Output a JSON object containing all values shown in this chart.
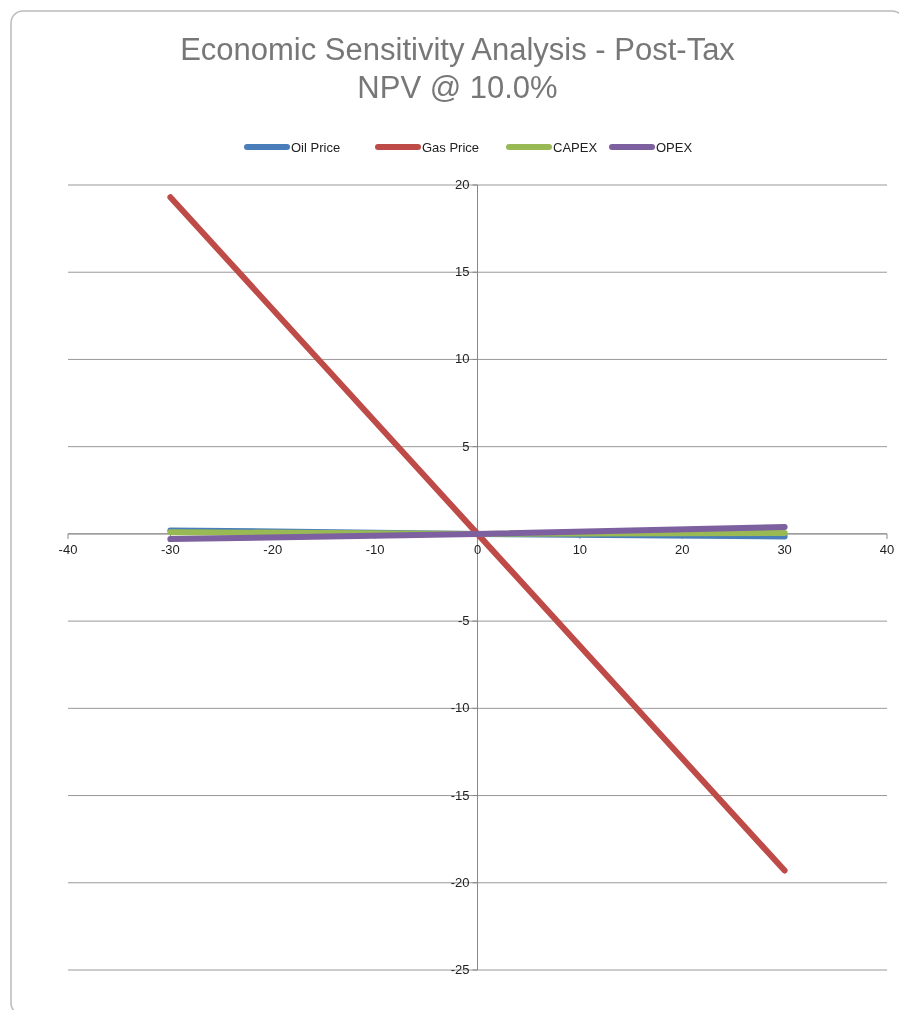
{
  "chart_data": {
    "type": "line",
    "title": "Economic Sensitivity Analysis - Post-Tax NPV @ 10.0%",
    "x": [
      -30,
      0,
      30
    ],
    "series": [
      {
        "name": "Oil Price",
        "color": "#4a7ebb",
        "values": [
          0.2,
          0,
          -0.15
        ]
      },
      {
        "name": "Gas Price",
        "color": "#be4b48",
        "values": [
          19.3,
          0,
          -19.3
        ]
      },
      {
        "name": "CAPEX",
        "color": "#98b954",
        "values": [
          0.1,
          0,
          0.05
        ]
      },
      {
        "name": "OPEX",
        "color": "#7d60a0",
        "values": [
          -0.3,
          0,
          0.4
        ]
      }
    ],
    "xlim": [
      -40,
      40
    ],
    "xticks": [
      -40,
      -30,
      -20,
      -10,
      0,
      10,
      20,
      30,
      40
    ],
    "ylim": [
      -25,
      20
    ],
    "yticks": [
      -25,
      -20,
      -15,
      -10,
      -5,
      {
        "value": 0,
        "label": null
      },
      5,
      10,
      15,
      20
    ],
    "grid": "y",
    "legend": "top",
    "line_style": "solid"
  }
}
